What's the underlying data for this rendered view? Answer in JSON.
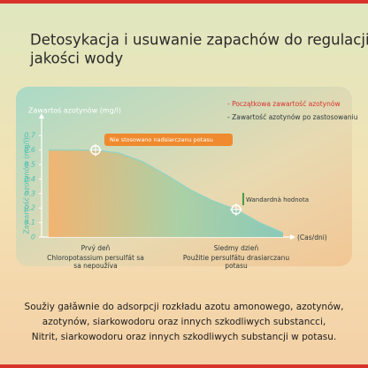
{
  "header": {
    "title_lines": [
      "Detosykacja i usuwanie zapachów do regulacji",
      "jakości wody"
    ]
  },
  "chart_data": {
    "type": "area",
    "top_axis_label": "Zawartoś azotynów (mg/l)",
    "y_axis_label": "Zawartość azotynów (mg/l)",
    "x_axis_label": "(Cas/dni)",
    "legend": [
      "- Początkowa zawartość azotynów",
      "- Zawartość azotynów po zastosowaniu"
    ],
    "categories": [
      null,
      null,
      "Prvý deň",
      null,
      null,
      null,
      null,
      null,
      "Siedmy dzień",
      null,
      null
    ],
    "category_notes": [
      [
        "Chloropotassium persulfát sa",
        "sa nepoužíva"
      ],
      [
        "Použitie persulfátu drasiarczanu",
        "potasu"
      ]
    ],
    "values": [
      0.6,
      0.6,
      0.6,
      0.58,
      0.52,
      0.43,
      0.33,
      0.25,
      0.19,
      0.1,
      0.03
    ],
    "color": "#8fd3c4",
    "annotations": [
      "Nie stosowano nadsiarczanu potasu",
      "Wandardnà hodnota"
    ],
    "ylim": [
      0,
      0.75
    ],
    "yticks": [
      0,
      0.1,
      0.2,
      0.3,
      0.4,
      0.5,
      0.6,
      0.7
    ]
  },
  "footer": {
    "lines": [
      "Soužiy gałǎwnie do adsorpcji rozkładu azotu amonowego, azotynów,",
      "azotynów, siarkowodoru oraz innych szkodliwych substancci,",
      "Nitrit, siarkowodoru oraz innych szkodliwych substancji w potasu."
    ]
  }
}
